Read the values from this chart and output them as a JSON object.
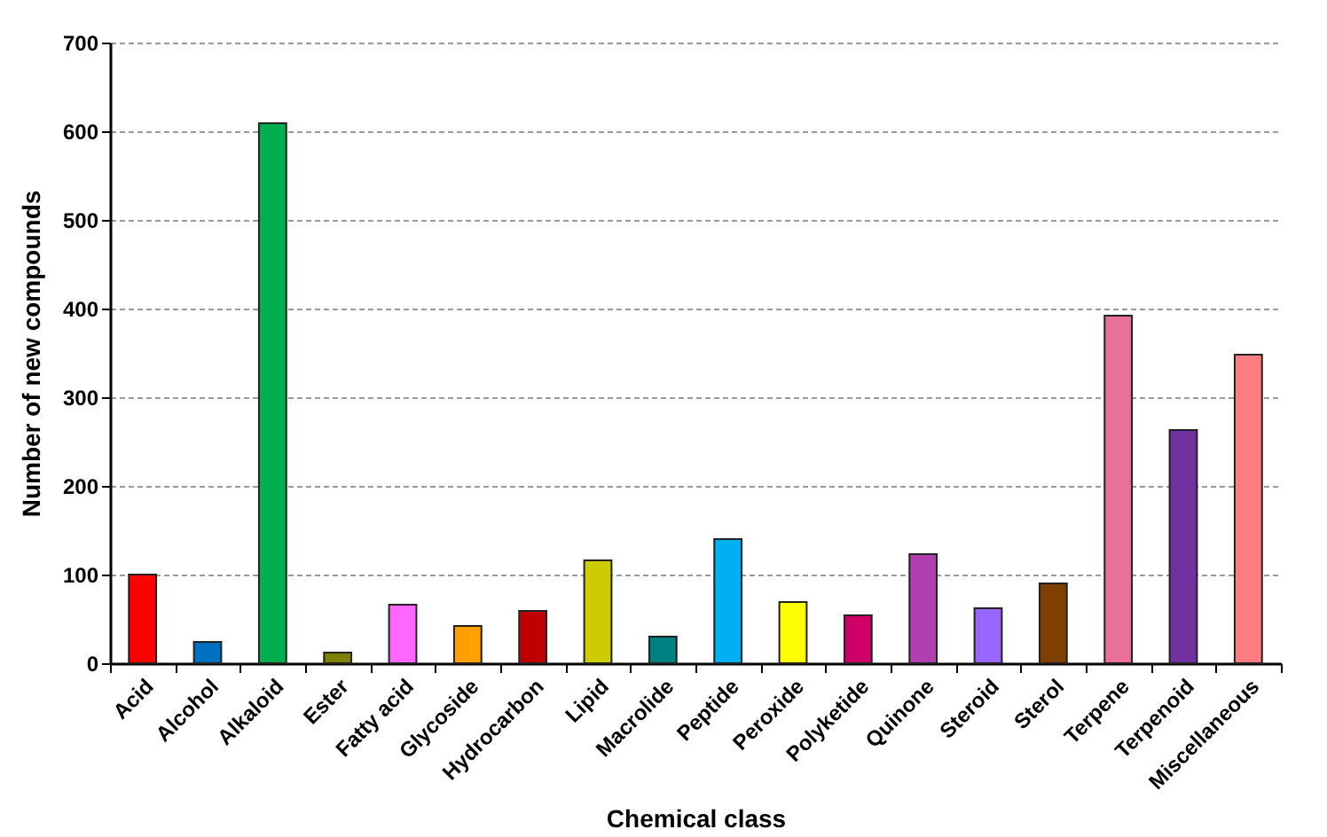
{
  "chart_data": {
    "type": "bar",
    "xlabel": "Chemical class",
    "ylabel": "Number of new compounds",
    "categories": [
      "Acid",
      "Alcohol",
      "Alkaloid",
      "Ester",
      "Fatty acid",
      "Glycoside",
      "Hydrocarbon",
      "Lipid",
      "Macrolide",
      "Peptide",
      "Peroxide",
      "Polyketide",
      "Quinone",
      "Steroid",
      "Sterol",
      "Terpene",
      "Terpenoid",
      "Miscellaneous"
    ],
    "values": [
      100,
      24,
      609,
      12,
      66,
      42,
      59,
      116,
      30,
      140,
      69,
      54,
      123,
      62,
      90,
      392,
      263,
      348
    ],
    "colors": [
      "#ff0000",
      "#0070c0",
      "#00b050",
      "#808000",
      "#ff66ff",
      "#ffa000",
      "#c00000",
      "#cccc00",
      "#008080",
      "#00b0f0",
      "#ffff00",
      "#cc0066",
      "#b040b0",
      "#9966ff",
      "#7f3f00",
      "#e8709a",
      "#7030a0",
      "#ff7c80"
    ],
    "ylim": [
      0,
      700
    ],
    "yticks": [
      0,
      100,
      200,
      300,
      400,
      500,
      600,
      700
    ],
    "grid": "y"
  }
}
